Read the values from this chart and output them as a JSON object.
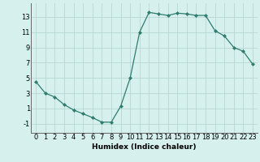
{
  "x": [
    0,
    1,
    2,
    3,
    4,
    5,
    6,
    7,
    8,
    9,
    10,
    11,
    12,
    13,
    14,
    15,
    16,
    17,
    18,
    19,
    20,
    21,
    22,
    23
  ],
  "y": [
    4.5,
    3.0,
    2.5,
    1.5,
    0.8,
    0.3,
    -0.2,
    -0.8,
    -0.8,
    1.3,
    5.0,
    11.0,
    13.6,
    13.4,
    13.2,
    13.5,
    13.4,
    13.2,
    13.2,
    11.2,
    10.5,
    9.0,
    8.5,
    6.8
  ],
  "line_color": "#2e7d6e",
  "marker": "D",
  "marker_size": 2.0,
  "bg_color": "#d6f0ee",
  "grid_color": "#b8d8d4",
  "xlabel": "Humidex (Indice chaleur)",
  "xlim": [
    -0.5,
    23.5
  ],
  "ylim": [
    -2.2,
    14.8
  ],
  "xticks": [
    0,
    1,
    2,
    3,
    4,
    5,
    6,
    7,
    8,
    9,
    10,
    11,
    12,
    13,
    14,
    15,
    16,
    17,
    18,
    19,
    20,
    21,
    22,
    23
  ],
  "yticks": [
    -1,
    1,
    3,
    5,
    7,
    9,
    11,
    13
  ],
  "xlabel_fontsize": 6.5,
  "tick_fontsize": 6.0,
  "linewidth": 0.9
}
